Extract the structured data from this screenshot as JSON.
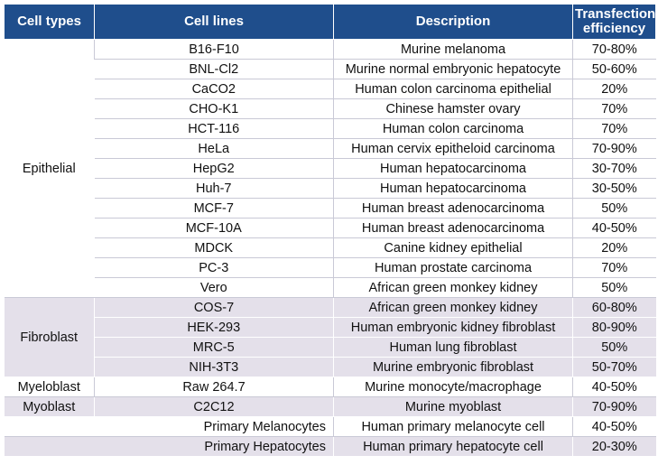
{
  "header": {
    "cell_types": "Cell types",
    "cell_lines": "Cell lines",
    "description": "Description",
    "efficiency_line1": "Transfection",
    "efficiency_line2": "efficiency"
  },
  "groups": [
    {
      "type": "Epithelial",
      "shade": false,
      "rows": [
        {
          "line": "B16-F10",
          "desc": "Murine melanoma",
          "eff": "70-80%"
        },
        {
          "line": "BNL-Cl2",
          "desc": "Murine normal embryonic hepatocyte",
          "eff": "50-60%"
        },
        {
          "line": "CaCO2",
          "desc": "Human colon carcinoma epithelial",
          "eff": "20%"
        },
        {
          "line": "CHO-K1",
          "desc": "Chinese hamster ovary",
          "eff": "70%"
        },
        {
          "line": "HCT-116",
          "desc": "Human colon carcinoma",
          "eff": "70%"
        },
        {
          "line": "HeLa",
          "desc": "Human cervix epitheloid carcinoma",
          "eff": "70-90%"
        },
        {
          "line": "HepG2",
          "desc": "Human hepatocarcinoma",
          "eff": "30-70%"
        },
        {
          "line": "Huh-7",
          "desc": "Human hepatocarcinoma",
          "eff": "30-50%"
        },
        {
          "line": "MCF-7",
          "desc": "Human breast adenocarcinoma",
          "eff": "50%"
        },
        {
          "line": "MCF-10A",
          "desc": "Human breast adenocarcinoma",
          "eff": "40-50%"
        },
        {
          "line": "MDCK",
          "desc": "Canine kidney epithelial",
          "eff": "20%"
        },
        {
          "line": "PC-3",
          "desc": "Human prostate carcinoma",
          "eff": "70%"
        },
        {
          "line": "Vero",
          "desc": "African green monkey kidney",
          "eff": "50%"
        }
      ]
    },
    {
      "type": "Fibroblast",
      "shade": true,
      "rows": [
        {
          "line": "COS-7",
          "desc": "African green monkey kidney",
          "eff": "60-80%"
        },
        {
          "line": "HEK-293",
          "desc": "Human embryonic kidney fibroblast",
          "eff": "80-90%"
        },
        {
          "line": "MRC-5",
          "desc": "Human lung fibroblast",
          "eff": "50%"
        },
        {
          "line": "NIH-3T3",
          "desc": "Murine embryonic fibroblast",
          "eff": "50-70%"
        }
      ]
    },
    {
      "type": "Myeloblast",
      "shade": false,
      "rows": [
        {
          "line": "Raw 264.7",
          "desc": "Murine monocyte/macrophage",
          "eff": "40-50%"
        }
      ]
    },
    {
      "type": "Myoblast",
      "shade": true,
      "rows": [
        {
          "line": "C2C12",
          "desc": "Murine myoblast",
          "eff": "70-90%"
        }
      ]
    }
  ],
  "primary_rows": [
    {
      "line": "Primary Melanocytes",
      "desc": "Human primary melanocyte cell",
      "eff": "40-50%",
      "shade": false
    },
    {
      "line": "Primary Hepatocytes",
      "desc": "Human primary hepatocyte cell",
      "eff": "20-30%",
      "shade": true
    }
  ]
}
